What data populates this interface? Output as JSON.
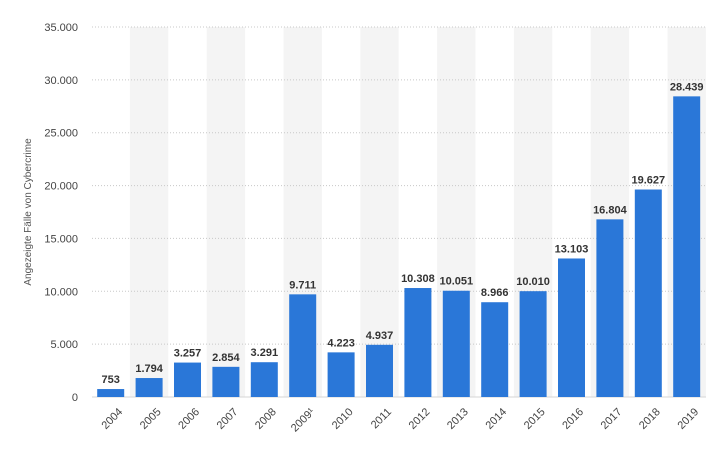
{
  "chart_data": {
    "type": "bar",
    "ylabel": "Angezeigte Fälle von Cybercrime",
    "categories": [
      "2004",
      "2005",
      "2006",
      "2007",
      "2008",
      "2009¹",
      "2010",
      "2011",
      "2012",
      "2013",
      "2014",
      "2015",
      "2016",
      "2017",
      "2018",
      "2019"
    ],
    "values": [
      753,
      1794,
      3257,
      2854,
      3291,
      9711,
      4223,
      4937,
      10308,
      10051,
      8966,
      10010,
      13103,
      16804,
      19627,
      28439
    ],
    "value_labels": [
      "753",
      "1.794",
      "3.257",
      "2.854",
      "3.291",
      "9.711",
      "4.223",
      "4.937",
      "10.308",
      "10.051",
      "8.966",
      "10.010",
      "13.103",
      "16.804",
      "19.627",
      "28.439"
    ],
    "ylim": [
      0,
      35000
    ],
    "y_ticks": [
      0,
      5000,
      10000,
      15000,
      20000,
      25000,
      30000,
      35000
    ],
    "y_tick_labels": [
      "0",
      "5.000",
      "10.000",
      "15.000",
      "20.000",
      "25.000",
      "30.000",
      "35.000"
    ],
    "grid": true,
    "bar_color": "#2a77d8",
    "band_color": "#f4f4f4"
  }
}
